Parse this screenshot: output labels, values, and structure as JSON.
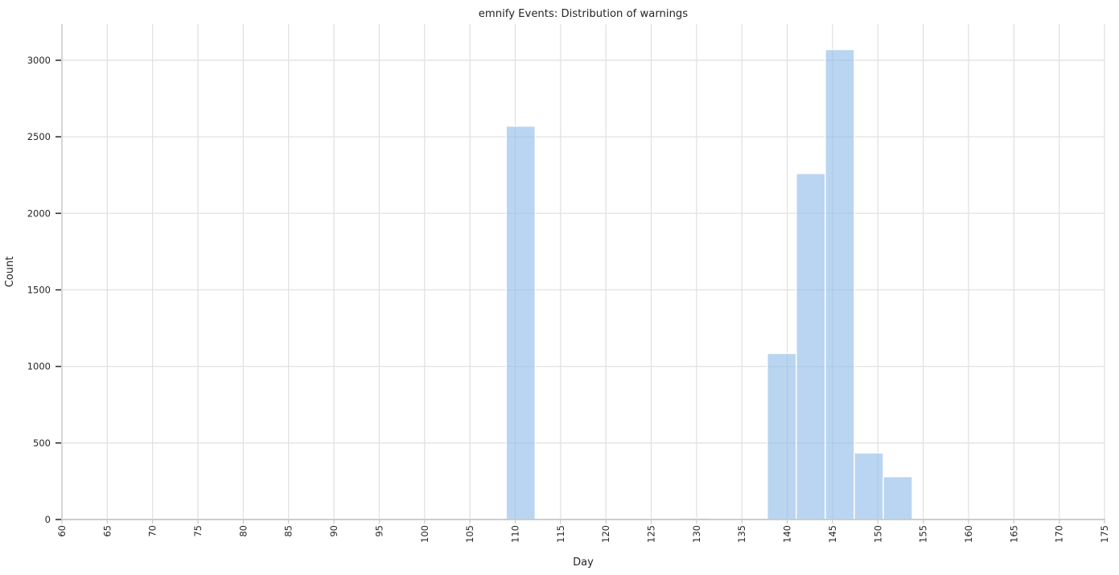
{
  "chart_data": {
    "type": "bar",
    "subtype": "histogram",
    "title": "emnify Events: Distribution of warnings",
    "xlabel": "Day",
    "ylabel": "Count",
    "xlim": [
      60,
      175
    ],
    "ylim": [
      0,
      3236
    ],
    "x_ticks": [
      60,
      65,
      70,
      75,
      80,
      85,
      90,
      95,
      100,
      105,
      110,
      115,
      120,
      125,
      130,
      135,
      140,
      145,
      150,
      155,
      160,
      165,
      170,
      175
    ],
    "y_ticks": [
      0,
      500,
      1000,
      1500,
      2000,
      2500,
      3000
    ],
    "x_tick_rotation": 90,
    "grid": true,
    "legend": false,
    "bin_width": 3.2,
    "bins": [
      {
        "x_start": 109.0,
        "x_end": 112.2,
        "count": 2570
      },
      {
        "x_start": 128.2,
        "x_end": 131.4,
        "count": 10
      },
      {
        "x_start": 137.8,
        "x_end": 141.0,
        "count": 1085
      },
      {
        "x_start": 141.0,
        "x_end": 144.2,
        "count": 2260
      },
      {
        "x_start": 144.2,
        "x_end": 147.4,
        "count": 3070
      },
      {
        "x_start": 147.4,
        "x_end": 150.6,
        "count": 435
      },
      {
        "x_start": 150.6,
        "x_end": 153.8,
        "count": 280
      }
    ],
    "colors": {
      "bar_fill": "#8fbbe8",
      "bar_fill_rendered": "#b9d4f0",
      "bar_edge": "#ffffff",
      "grid": "#e2e2e2",
      "spine": "#cccccc",
      "tick_mark_y": "#333333",
      "tick_mark_x": "#c8c8c8",
      "text": "#262626",
      "background": "#ffffff"
    }
  }
}
